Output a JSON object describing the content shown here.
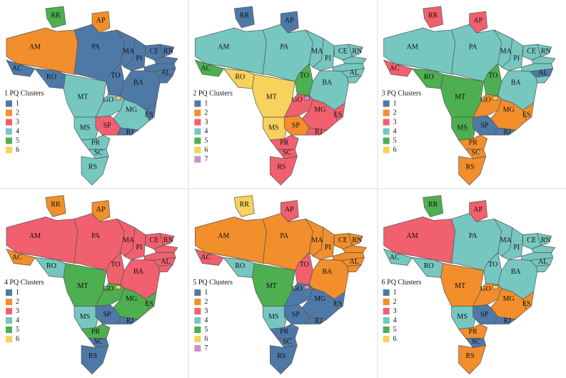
{
  "state_labels": [
    "RR",
    "AP",
    "AM",
    "PA",
    "AC",
    "RO",
    "MT",
    "TO",
    "MA",
    "PI",
    "CE",
    "RN",
    null,
    null,
    "AL",
    null,
    "BA",
    "GO",
    null,
    "MG",
    "ES",
    "MS",
    "SP",
    "RJ",
    "PR",
    "SC",
    "RS"
  ],
  "cluster_colors": [
    "#4e79a7",
    "#f28e2b",
    "#f0606e",
    "#76c7c0",
    "#4daf4f",
    "#f7d25c",
    "#c792c9"
  ],
  "maps": [
    {
      "legend_title": "1 PQ Clusters",
      "legend": [
        "1",
        "2",
        "3",
        "4",
        "5",
        "6"
      ],
      "clusters": [
        5,
        2,
        2,
        1,
        1,
        1,
        4,
        1,
        1,
        1,
        1,
        1,
        1,
        1,
        1,
        1,
        1,
        4,
        6,
        4,
        1,
        4,
        3,
        1,
        4,
        4,
        4
      ]
    },
    {
      "legend_title": "2 PQ Clusters",
      "legend": [
        "1",
        "2",
        "3",
        "4",
        "5",
        "6",
        "7"
      ],
      "clusters": [
        1,
        1,
        4,
        4,
        5,
        6,
        6,
        5,
        4,
        4,
        4,
        4,
        4,
        4,
        4,
        4,
        4,
        3,
        7,
        3,
        3,
        6,
        2,
        3,
        3,
        3,
        3
      ]
    },
    {
      "legend_title": "3 PQ Clusters",
      "legend": [
        "1",
        "2",
        "3",
        "4",
        "5",
        "6"
      ],
      "clusters": [
        3,
        3,
        4,
        4,
        3,
        5,
        5,
        5,
        4,
        4,
        4,
        4,
        4,
        4,
        1,
        4,
        4,
        2,
        6,
        2,
        2,
        5,
        1,
        1,
        2,
        2,
        2
      ]
    },
    {
      "legend_title": "4 PQ Clusters",
      "legend": [
        "1",
        "2",
        "3",
        "4",
        "5",
        "6"
      ],
      "clusters": [
        2,
        2,
        3,
        3,
        2,
        4,
        5,
        3,
        3,
        3,
        3,
        3,
        3,
        3,
        3,
        3,
        3,
        5,
        6,
        5,
        5,
        4,
        1,
        1,
        5,
        1,
        1
      ]
    },
    {
      "legend_title": "5 PQ Clusters",
      "legend": [
        "1",
        "2",
        "3",
        "4",
        "5",
        "6",
        "7"
      ],
      "clusters": [
        6,
        3,
        2,
        2,
        3,
        4,
        5,
        3,
        2,
        2,
        2,
        2,
        2,
        2,
        2,
        2,
        2,
        1,
        7,
        1,
        1,
        4,
        1,
        1,
        1,
        1,
        1
      ]
    },
    {
      "legend_title": "6 PQ Clusters",
      "legend": [
        "1",
        "2",
        "3",
        "4",
        "5",
        "6"
      ],
      "clusters": [
        5,
        3,
        3,
        4,
        4,
        4,
        2,
        4,
        4,
        4,
        4,
        4,
        4,
        4,
        4,
        4,
        4,
        2,
        6,
        2,
        2,
        4,
        1,
        1,
        2,
        1,
        2
      ]
    }
  ]
}
